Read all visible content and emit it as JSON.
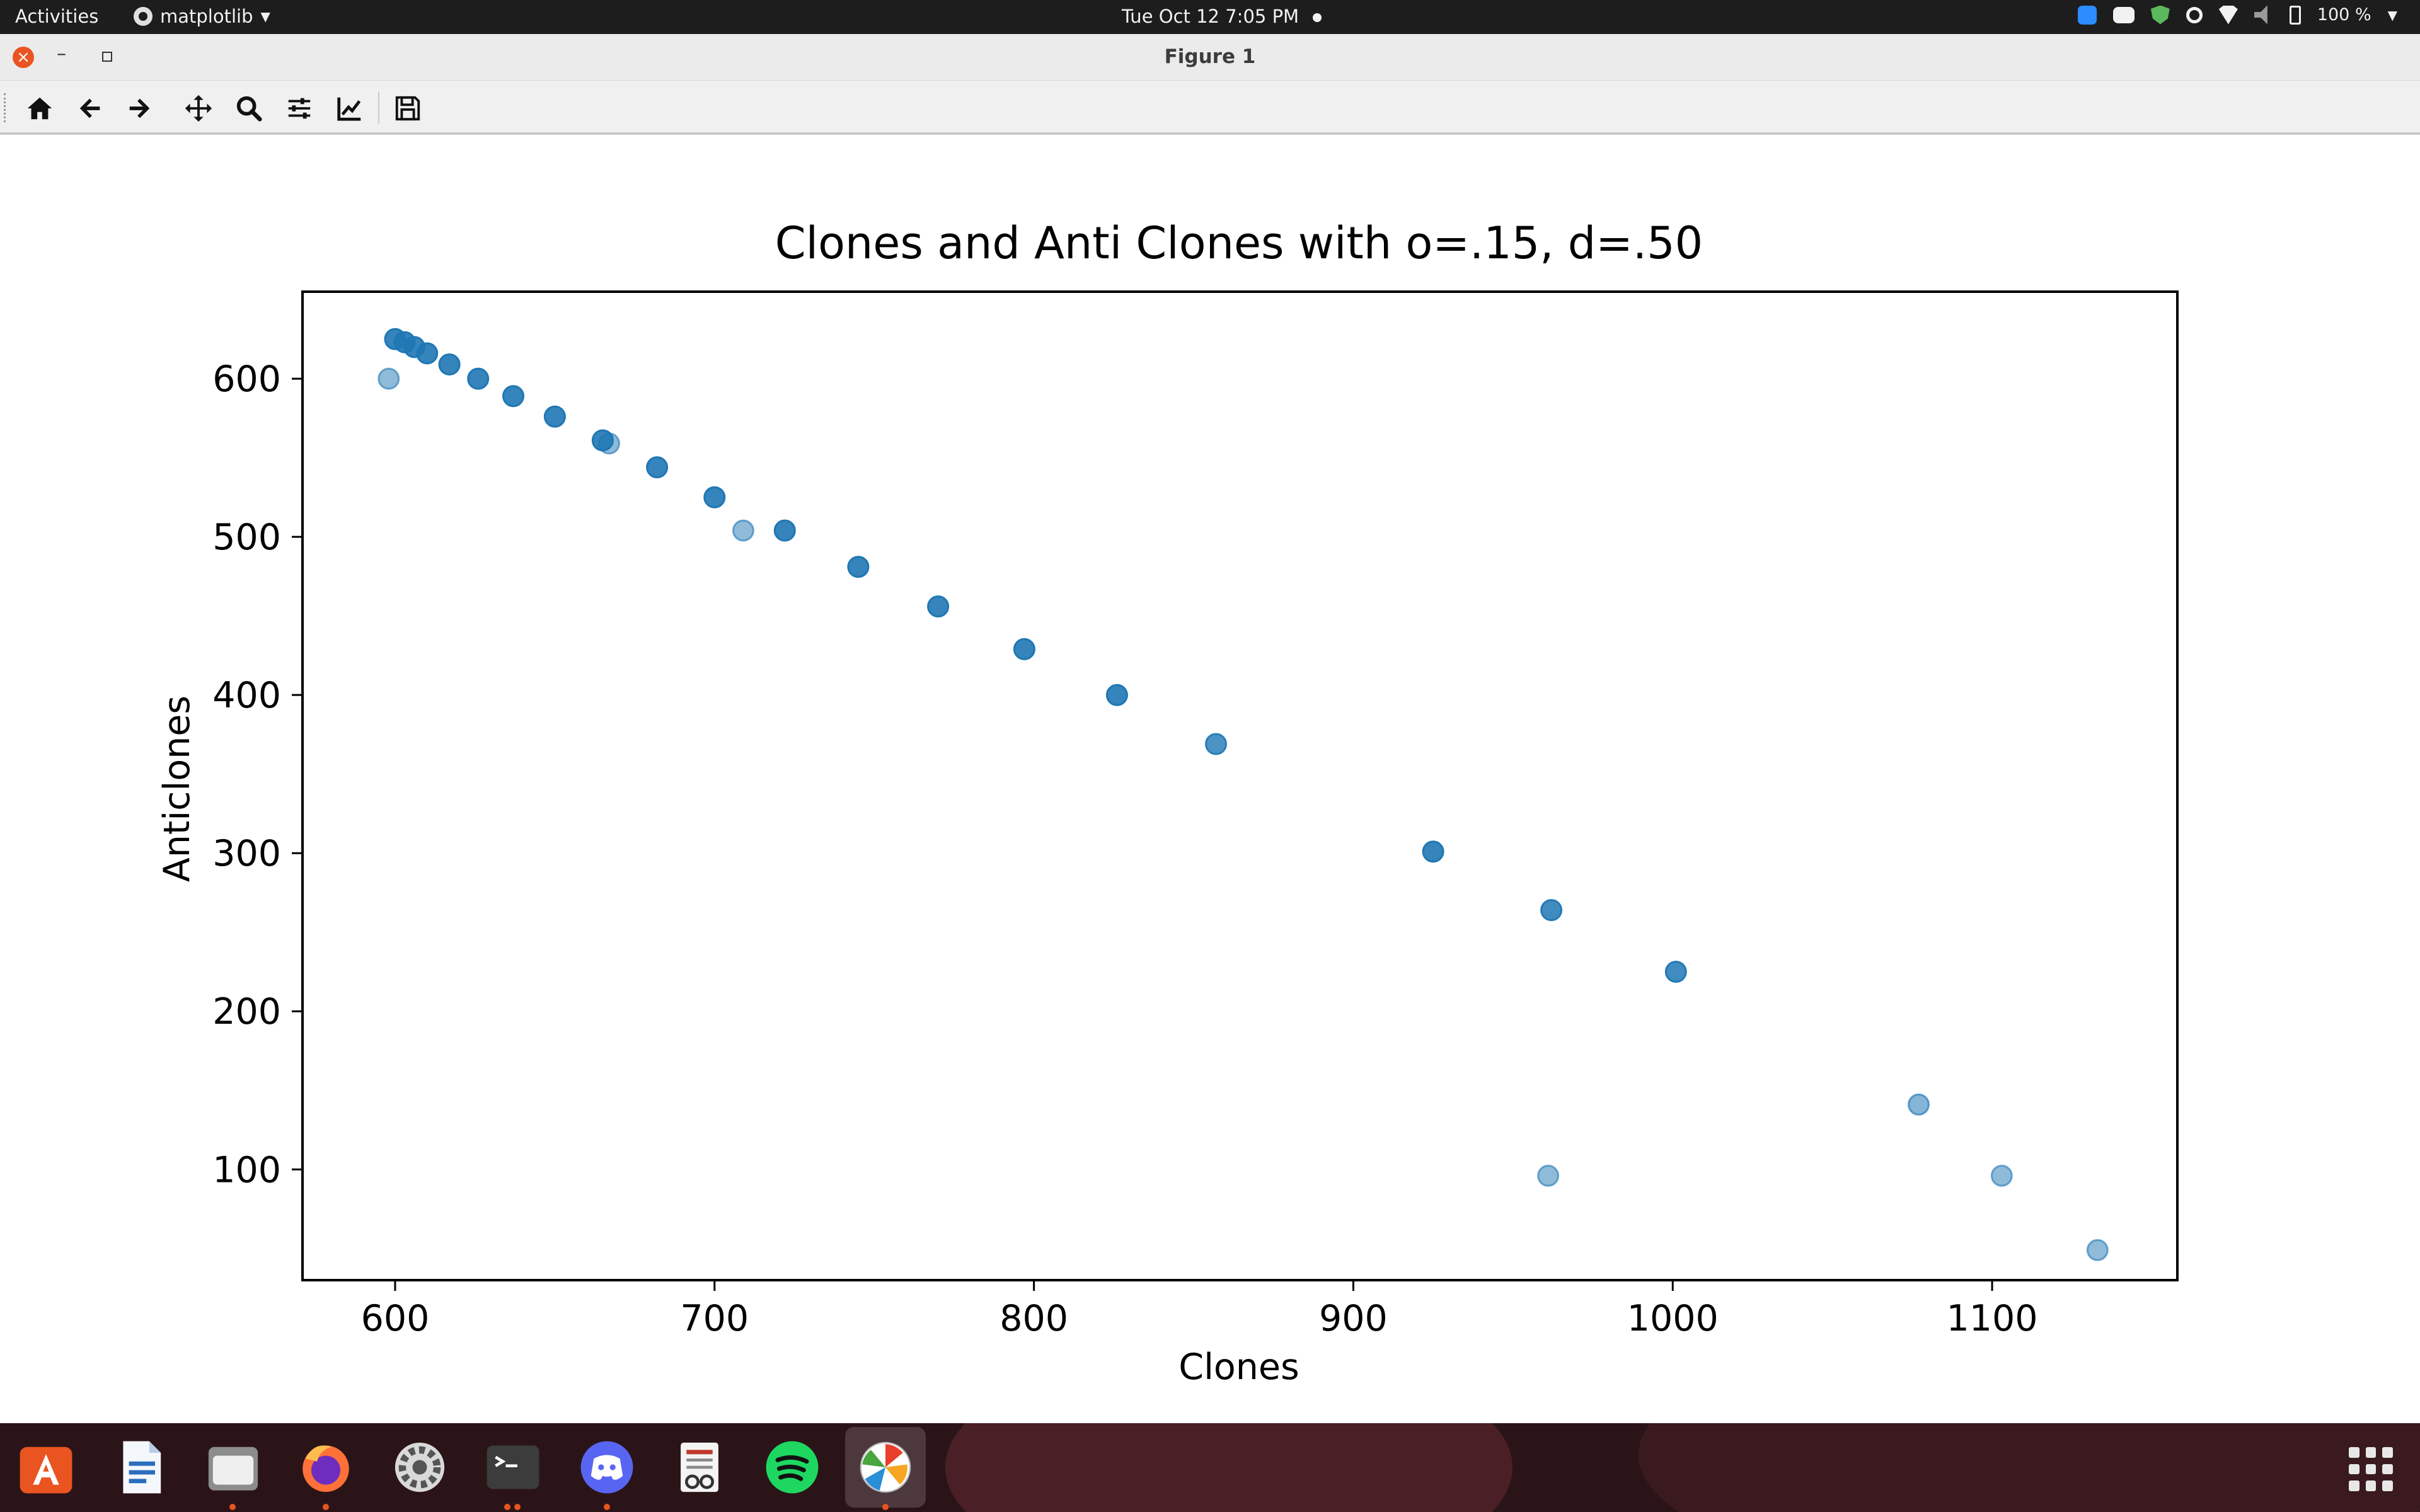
{
  "topbar": {
    "activities": "Activities",
    "app_name": "matplotlib",
    "clock": "Tue Oct 12  7:05 PM",
    "battery": "100 %",
    "icons": [
      "zoom-icon",
      "discord-icon",
      "shield-icon",
      "brightness-icon",
      "wifi-icon",
      "volume-icon",
      "battery-icon"
    ]
  },
  "window": {
    "title": "Figure 1"
  },
  "toolbar": {
    "icons": [
      "home-icon",
      "back-arrow-icon",
      "forward-arrow-icon",
      "pan-icon",
      "zoom-icon",
      "configure-subplots-icon",
      "edit-axis-icon",
      "save-icon"
    ]
  },
  "chart_data": {
    "type": "scatter",
    "title": "Clones and Anti Clones with o=.15, d=.50",
    "xlabel": "Clones",
    "ylabel": "Anticlones",
    "xlim": [
      571,
      1158
    ],
    "ylim": [
      30,
      655
    ],
    "xticks": [
      600,
      700,
      800,
      900,
      1000,
      1100
    ],
    "yticks": [
      100,
      200,
      300,
      400,
      500,
      600
    ],
    "grid": false,
    "color": "#1f77b4",
    "points": [
      {
        "x": 600,
        "y": 625,
        "alpha": 0.9
      },
      {
        "x": 603,
        "y": 623,
        "alpha": 0.9
      },
      {
        "x": 606,
        "y": 620,
        "alpha": 0.9
      },
      {
        "x": 610,
        "y": 616,
        "alpha": 0.9
      },
      {
        "x": 617,
        "y": 609,
        "alpha": 0.9
      },
      {
        "x": 626,
        "y": 600,
        "alpha": 0.9
      },
      {
        "x": 637,
        "y": 589,
        "alpha": 0.9
      },
      {
        "x": 650,
        "y": 576,
        "alpha": 0.9
      },
      {
        "x": 665,
        "y": 561,
        "alpha": 0.9
      },
      {
        "x": 682,
        "y": 544,
        "alpha": 0.9
      },
      {
        "x": 700,
        "y": 525,
        "alpha": 0.9
      },
      {
        "x": 722,
        "y": 504,
        "alpha": 0.9
      },
      {
        "x": 745,
        "y": 481,
        "alpha": 0.9
      },
      {
        "x": 770,
        "y": 456,
        "alpha": 0.9
      },
      {
        "x": 797,
        "y": 429,
        "alpha": 0.9
      },
      {
        "x": 826,
        "y": 400,
        "alpha": 0.9
      },
      {
        "x": 925,
        "y": 301,
        "alpha": 0.9
      },
      {
        "x": 962,
        "y": 264,
        "alpha": 0.85
      },
      {
        "x": 1001,
        "y": 225,
        "alpha": 0.85
      },
      {
        "x": 857,
        "y": 369,
        "alpha": 0.8
      },
      {
        "x": 598,
        "y": 600,
        "alpha": 0.5
      },
      {
        "x": 667,
        "y": 559,
        "alpha": 0.5
      },
      {
        "x": 709,
        "y": 504,
        "alpha": 0.5
      },
      {
        "x": 961,
        "y": 96,
        "alpha": 0.5
      },
      {
        "x": 1077,
        "y": 141,
        "alpha": 0.55
      },
      {
        "x": 1103,
        "y": 96,
        "alpha": 0.5
      },
      {
        "x": 1133,
        "y": 49,
        "alpha": 0.5
      }
    ]
  },
  "dock": {
    "items": [
      "app-store-icon",
      "writer-icon",
      "files-icon",
      "firefox-icon",
      "settings-icon",
      "terminal-icon",
      "discord-icon",
      "document-viewer-icon",
      "spotify-icon",
      "matplotlib-icon"
    ],
    "show_apps_icon": "show-applications-icon"
  }
}
